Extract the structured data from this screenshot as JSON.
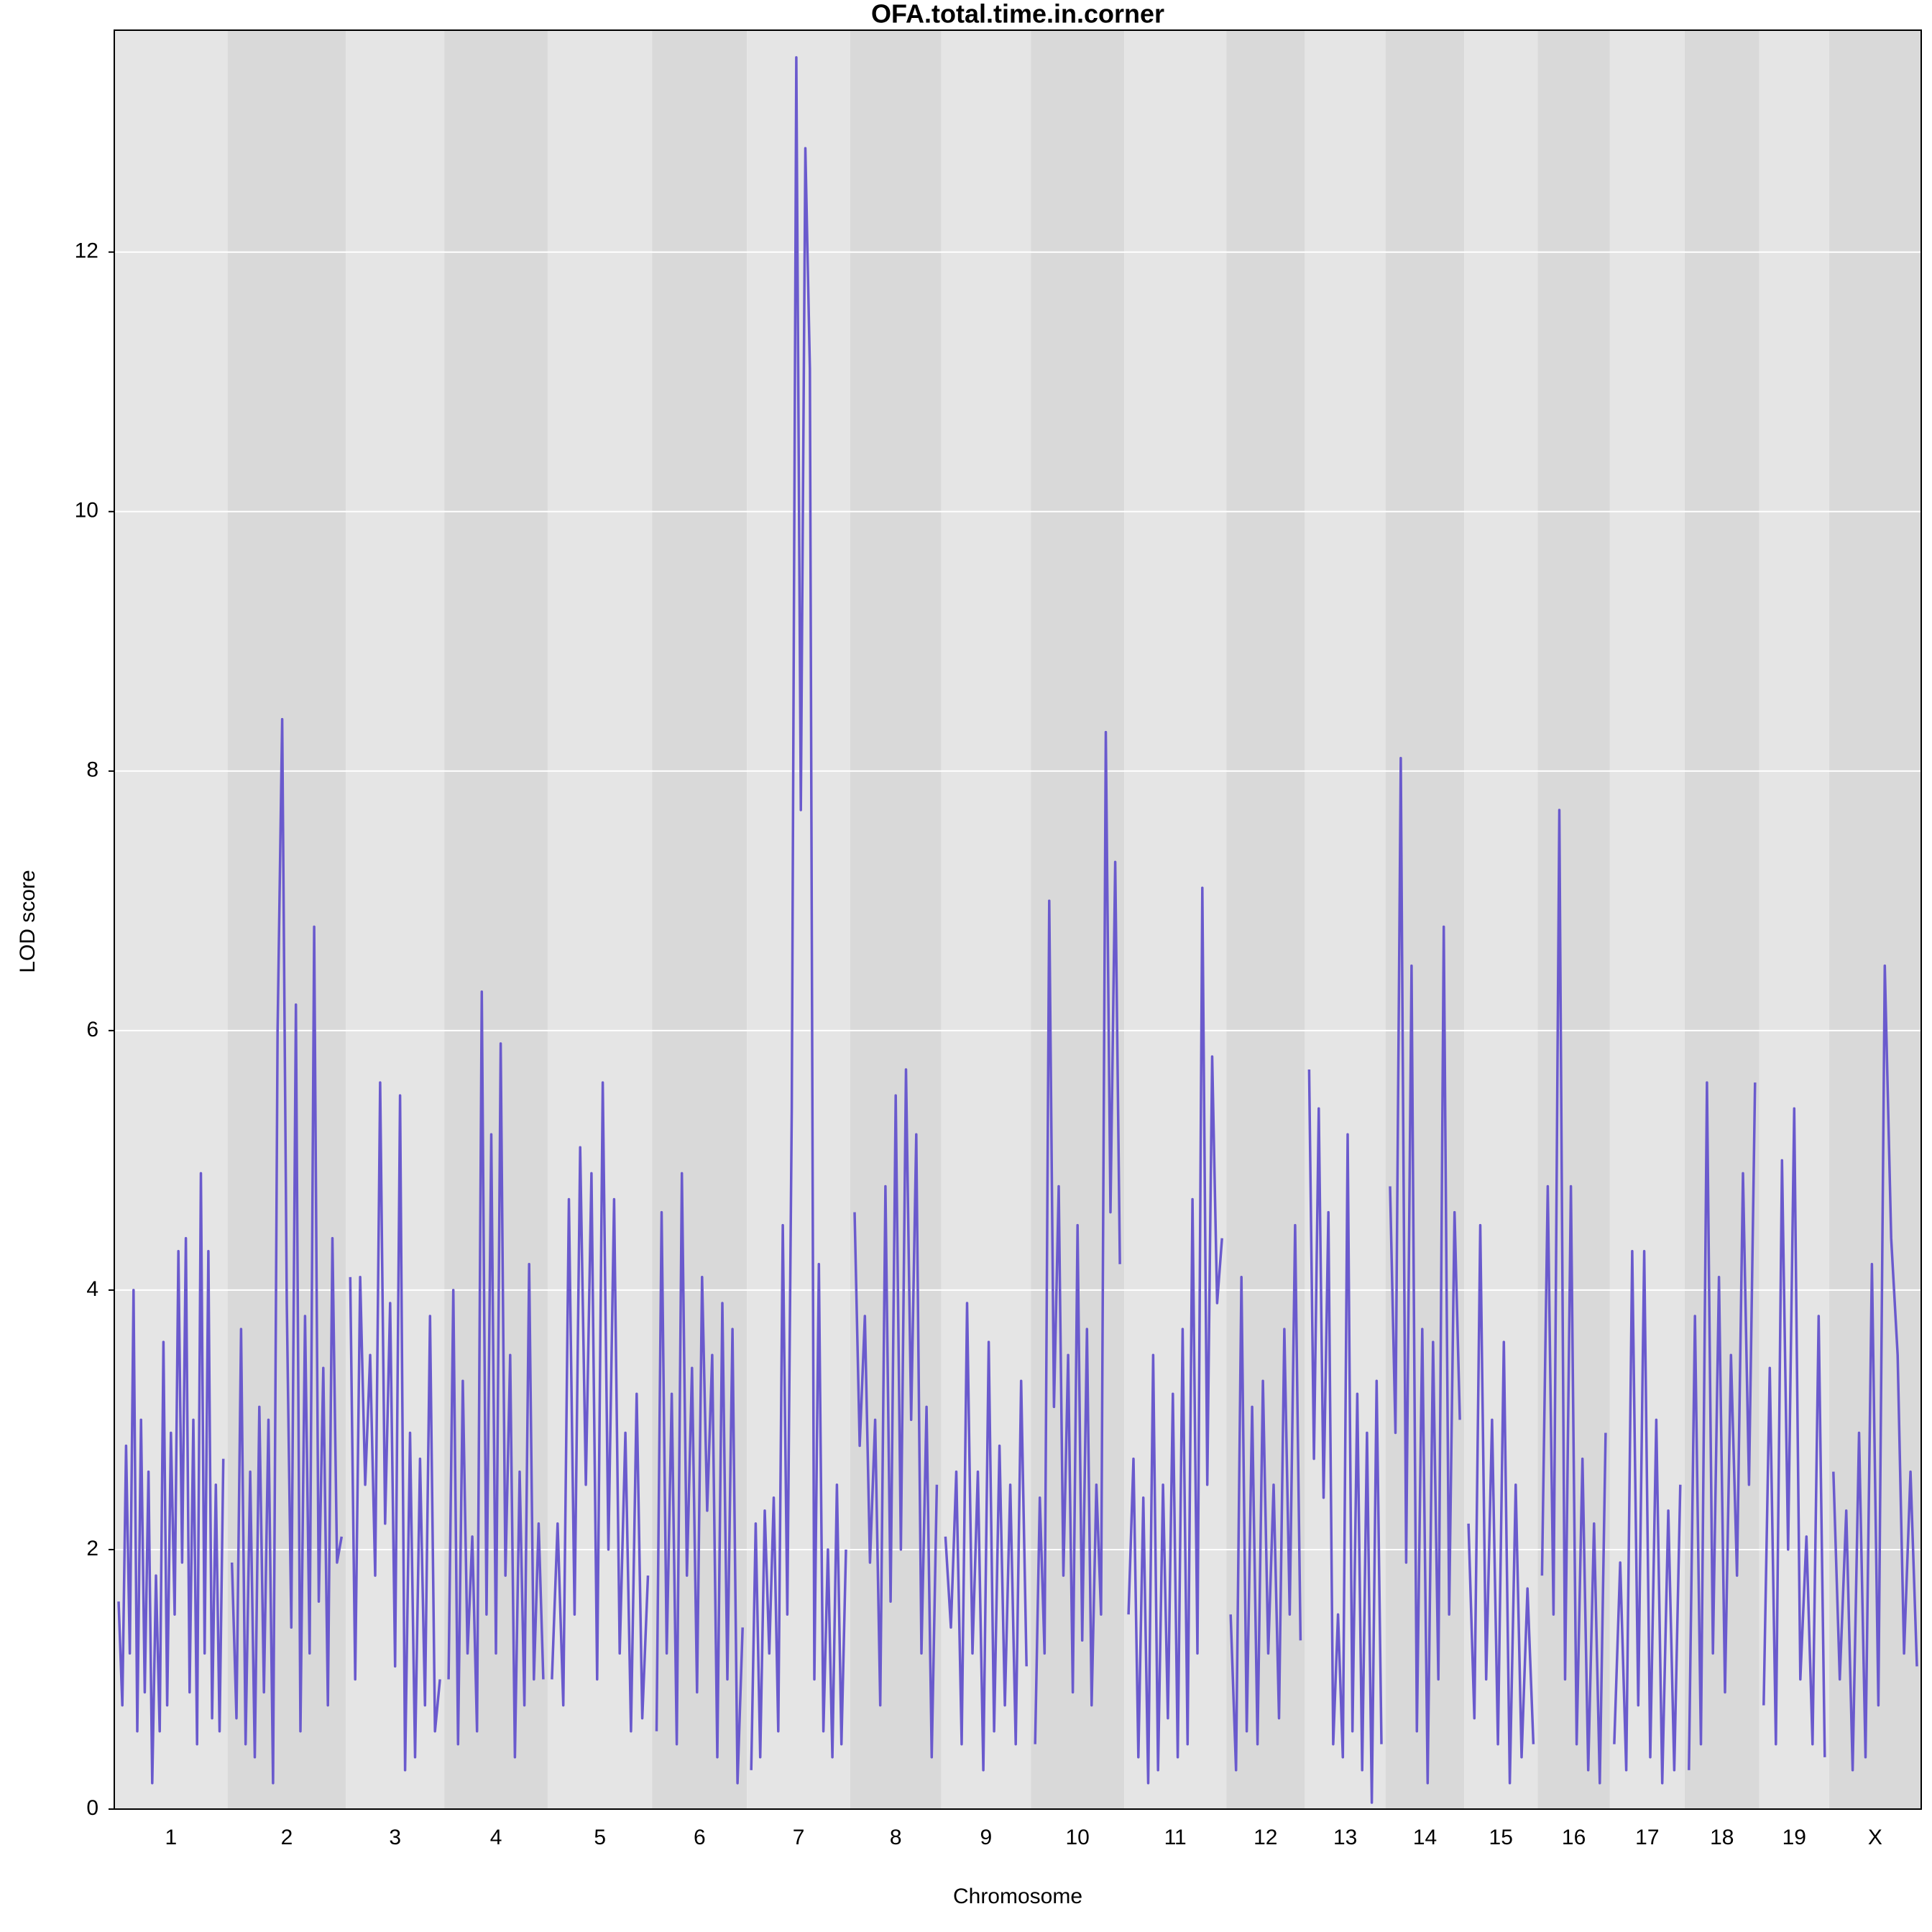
{
  "chart_data": {
    "type": "line",
    "title": "OFA.total.time.in.corner",
    "xlabel": "Chromosome",
    "ylabel": "LOD score",
    "color": "#6a5acd",
    "grid": true,
    "band_colors": [
      "#e5e5e5",
      "#d9d9d9"
    ],
    "ylim": [
      0,
      13.71
    ],
    "yticks": [
      0,
      2,
      4,
      6,
      8,
      10,
      12
    ],
    "chromosomes": [
      {
        "name": "1",
        "length": 91,
        "values": [
          1.6,
          0.8,
          2.8,
          1.2,
          4.0,
          0.6,
          3.0,
          0.9,
          2.6,
          0.2,
          1.8,
          0.6,
          3.6,
          0.8,
          2.9,
          1.5,
          4.3,
          1.9,
          4.4,
          0.9,
          3.0,
          0.5,
          4.9,
          1.2,
          4.3,
          0.7,
          2.5,
          0.6,
          2.7
        ]
      },
      {
        "name": "2",
        "length": 95,
        "values": [
          1.9,
          0.7,
          3.7,
          0.5,
          2.6,
          0.4,
          3.1,
          0.9,
          3.0,
          0.2,
          6.0,
          8.4,
          3.9,
          1.4,
          6.2,
          0.6,
          3.8,
          1.2,
          6.8,
          1.6,
          3.4,
          0.8,
          4.4,
          1.9,
          2.1
        ]
      },
      {
        "name": "3",
        "length": 79,
        "values": [
          4.1,
          1.0,
          4.1,
          2.5,
          3.5,
          1.8,
          5.6,
          2.2,
          3.9,
          1.1,
          5.5,
          0.3,
          2.9,
          0.4,
          2.7,
          0.8,
          3.8,
          0.6,
          1.0
        ]
      },
      {
        "name": "4",
        "length": 83,
        "values": [
          1.0,
          4.0,
          0.5,
          3.3,
          1.2,
          2.1,
          0.6,
          6.3,
          1.5,
          5.2,
          1.2,
          5.9,
          1.8,
          3.5,
          0.4,
          2.6,
          0.8,
          4.2,
          1.0,
          2.2,
          1.0
        ]
      },
      {
        "name": "5",
        "length": 84,
        "values": [
          1.0,
          2.2,
          0.8,
          4.7,
          1.5,
          5.1,
          2.5,
          4.9,
          1.0,
          5.6,
          2.0,
          4.7,
          1.2,
          2.9,
          0.6,
          3.2,
          0.7,
          1.8
        ]
      },
      {
        "name": "6",
        "length": 76,
        "values": [
          0.6,
          4.6,
          1.2,
          3.2,
          0.5,
          4.9,
          1.8,
          3.4,
          0.9,
          4.1,
          2.3,
          3.5,
          0.4,
          3.9,
          1.0,
          3.7,
          0.2,
          1.4
        ]
      },
      {
        "name": "7",
        "length": 83,
        "values": [
          0.3,
          2.2,
          0.4,
          2.3,
          1.2,
          2.4,
          0.6,
          4.5,
          1.5,
          5.4,
          13.5,
          7.7,
          12.8,
          11.1,
          1.0,
          4.2,
          0.6,
          2.0,
          0.4,
          2.5,
          0.5,
          2.0
        ]
      },
      {
        "name": "8",
        "length": 73,
        "values": [
          4.6,
          2.8,
          3.8,
          1.9,
          3.0,
          0.8,
          4.8,
          1.6,
          5.5,
          2.0,
          5.7,
          3.0,
          5.2,
          1.2,
          3.1,
          0.4,
          2.5
        ]
      },
      {
        "name": "9",
        "length": 72,
        "values": [
          2.1,
          1.4,
          2.6,
          0.5,
          3.9,
          1.2,
          2.6,
          0.3,
          3.6,
          0.6,
          2.8,
          0.8,
          2.5,
          0.5,
          3.3,
          1.1
        ]
      },
      {
        "name": "10",
        "length": 75,
        "values": [
          0.5,
          2.4,
          1.2,
          7.0,
          3.1,
          4.8,
          1.8,
          3.5,
          0.9,
          4.5,
          1.3,
          3.7,
          0.8,
          2.5,
          1.5,
          8.3,
          4.6,
          7.3,
          4.2
        ]
      },
      {
        "name": "11",
        "length": 82,
        "values": [
          1.5,
          2.7,
          0.4,
          2.4,
          0.2,
          3.5,
          0.3,
          2.5,
          0.7,
          3.2,
          0.4,
          3.7,
          0.5,
          4.7,
          1.2,
          7.1,
          2.5,
          5.8,
          3.9,
          4.4
        ]
      },
      {
        "name": "12",
        "length": 63,
        "values": [
          1.5,
          0.3,
          4.1,
          0.6,
          3.1,
          0.5,
          3.3,
          1.2,
          2.5,
          0.7,
          3.7,
          1.5,
          4.5,
          1.3
        ]
      },
      {
        "name": "13",
        "length": 65,
        "values": [
          5.7,
          2.7,
          5.4,
          2.4,
          4.6,
          0.5,
          1.5,
          0.4,
          5.2,
          0.6,
          3.2,
          0.3,
          2.9,
          0.05,
          3.3,
          0.5
        ]
      },
      {
        "name": "14",
        "length": 63,
        "values": [
          4.8,
          2.9,
          8.1,
          1.9,
          6.5,
          0.6,
          3.7,
          0.2,
          3.6,
          1.0,
          6.8,
          1.5,
          4.6,
          3.0
        ]
      },
      {
        "name": "15",
        "length": 59,
        "values": [
          2.2,
          0.7,
          4.5,
          1.0,
          3.0,
          0.5,
          3.6,
          0.2,
          2.5,
          0.4,
          1.7,
          0.5
        ]
      },
      {
        "name": "16",
        "length": 58,
        "values": [
          1.8,
          4.8,
          1.5,
          7.7,
          1.0,
          4.8,
          0.5,
          2.7,
          0.3,
          2.2,
          0.2,
          2.9
        ]
      },
      {
        "name": "17",
        "length": 60,
        "values": [
          0.5,
          1.9,
          0.3,
          4.3,
          0.8,
          4.3,
          0.4,
          3.0,
          0.2,
          2.3,
          0.3,
          2.5
        ]
      },
      {
        "name": "18",
        "length": 60,
        "values": [
          0.3,
          3.8,
          0.5,
          5.6,
          1.2,
          4.1,
          0.9,
          3.5,
          1.8,
          4.9,
          2.5,
          5.6
        ]
      },
      {
        "name": "19",
        "length": 56,
        "values": [
          0.8,
          3.4,
          0.5,
          5.0,
          2.0,
          5.4,
          1.0,
          2.1,
          0.5,
          3.8,
          0.4
        ]
      },
      {
        "name": "X",
        "length": 74,
        "values": [
          2.6,
          1.0,
          2.3,
          0.3,
          2.9,
          0.4,
          4.2,
          0.8,
          6.5,
          4.4,
          3.5,
          1.2,
          2.6,
          1.1
        ]
      }
    ]
  }
}
